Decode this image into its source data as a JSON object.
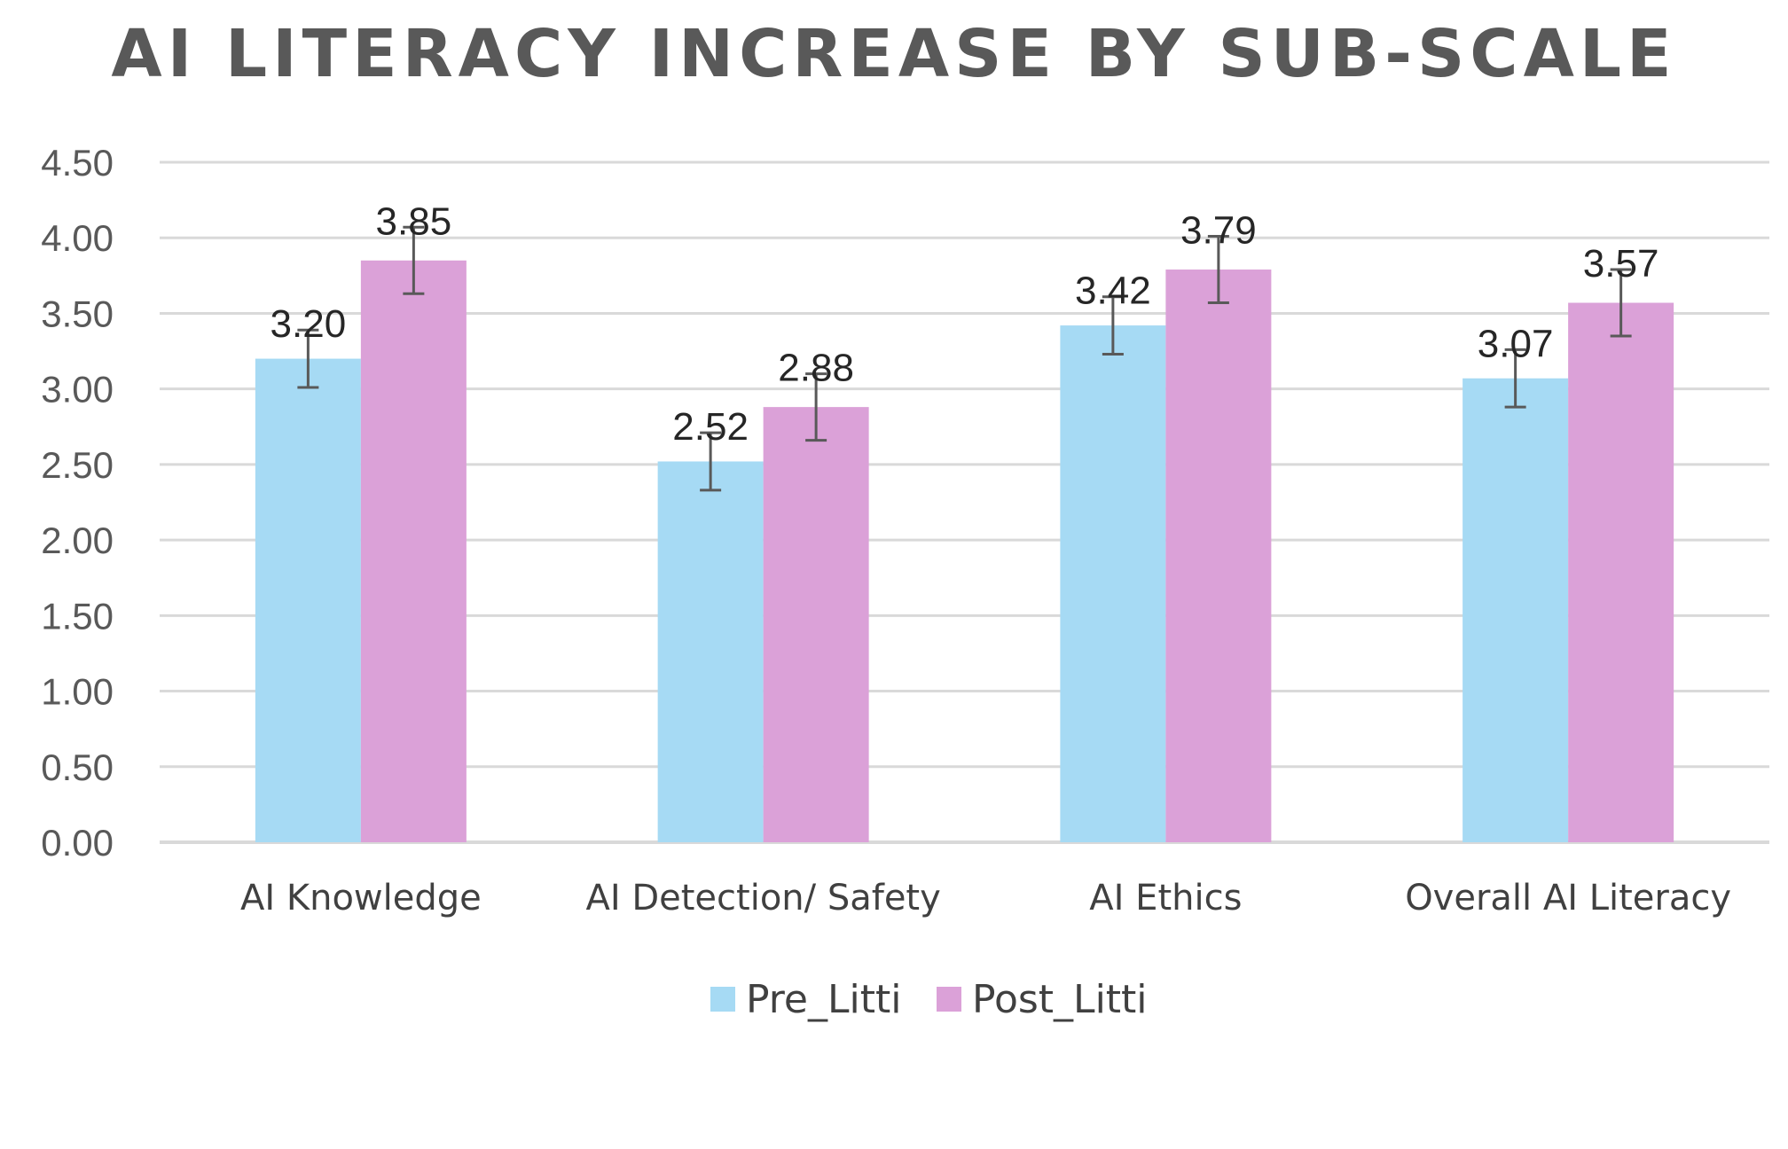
{
  "chart_data": {
    "type": "bar",
    "title": "AI LITERACY INCREASE BY SUB-SCALE",
    "categories": [
      "AI Knowledge",
      "AI Detection/ Safety",
      "AI Ethics",
      "Overall AI Literacy"
    ],
    "series": [
      {
        "name": "Pre_Litti",
        "color": "#A6DAF4",
        "values": [
          3.2,
          2.52,
          3.42,
          3.07
        ],
        "labels": [
          "3.20",
          "2.52",
          "3.42",
          "3.07"
        ],
        "error": [
          0.19,
          0.19,
          0.19,
          0.19
        ]
      },
      {
        "name": "Post_Litti",
        "color": "#DBA1D8",
        "values": [
          3.85,
          2.88,
          3.79,
          3.57
        ],
        "labels": [
          "3.85",
          "2.88",
          "3.79",
          "3.57"
        ],
        "error": [
          0.22,
          0.22,
          0.22,
          0.22
        ]
      }
    ],
    "yticks": [
      "0.00",
      "0.50",
      "1.00",
      "1.50",
      "2.00",
      "2.50",
      "3.00",
      "3.50",
      "4.00",
      "4.50"
    ],
    "ylim": [
      0,
      4.5
    ],
    "grid": true,
    "legend_position": "bottom",
    "xlabel": "",
    "ylabel": ""
  }
}
